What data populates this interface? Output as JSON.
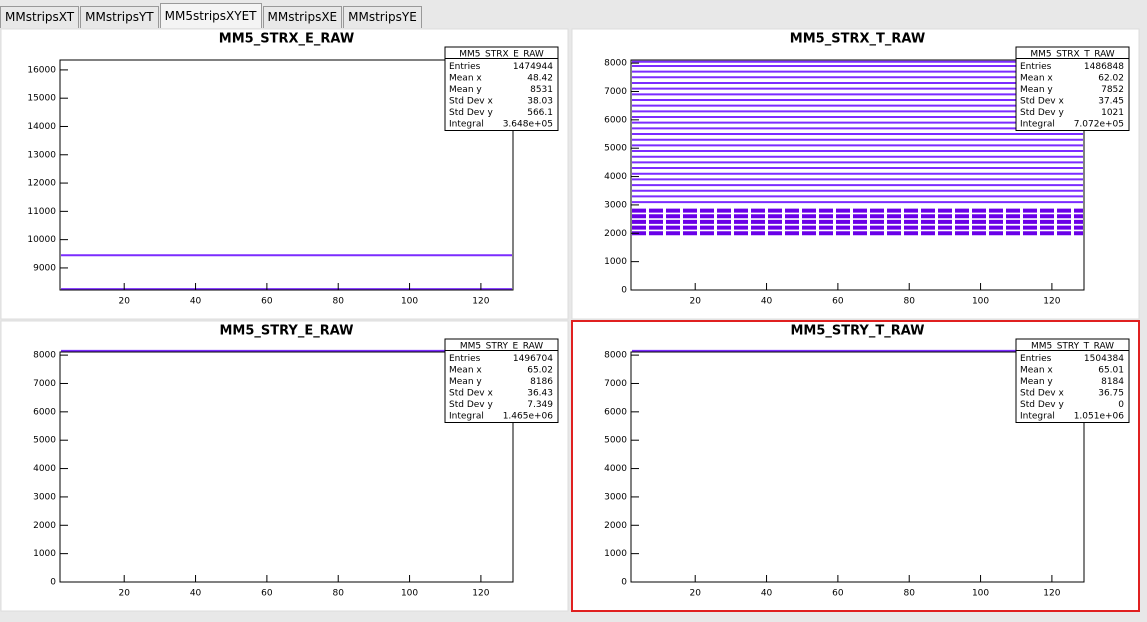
{
  "tabs": [
    "MMstripsXT",
    "MMstripsYT",
    "MM5stripsXYET",
    "MMstripsXE",
    "MMstripsYE"
  ],
  "selected_tab": 2,
  "panels": [
    {
      "title": "MM5_STRX_E_RAW",
      "stats": {
        "name": "MM5_STRX_E_RAW",
        "rows": [
          [
            "Entries",
            "1474944"
          ],
          [
            "Mean x",
            "48.42"
          ],
          [
            "Mean y",
            "8531"
          ],
          [
            "Std Dev x",
            "38.03"
          ],
          [
            "Std Dev y",
            "566.1"
          ],
          [
            "Integral",
            "3.648e+05"
          ]
        ]
      },
      "xlim": [
        2,
        129
      ],
      "xticks": [
        20,
        40,
        60,
        80,
        100,
        120
      ],
      "ylim": [
        8220,
        16350
      ],
      "yticks": [
        9000,
        10000,
        11000,
        12000,
        13000,
        14000,
        15000,
        16000
      ],
      "levels": [
        9450,
        8250
      ]
    },
    {
      "title": "MM5_STRX_T_RAW",
      "stats": {
        "name": "MM5_STRX_T_RAW",
        "rows": [
          [
            "Entries",
            "1486848"
          ],
          [
            "Mean x",
            "62.02"
          ],
          [
            "Mean y",
            "7852"
          ],
          [
            "Std Dev x",
            "37.45"
          ],
          [
            "Std Dev y",
            "1021"
          ],
          [
            "Integral",
            "7.072e+05"
          ]
        ]
      },
      "xlim": [
        2,
        129
      ],
      "xticks": [
        20,
        40,
        60,
        80,
        100,
        120
      ],
      "ylim": [
        0,
        8110
      ],
      "yticks": [
        0,
        1000,
        2000,
        3000,
        4000,
        5000,
        6000,
        7000,
        8000
      ],
      "levels": [
        8050,
        7900,
        7700,
        7500,
        7300,
        7100,
        6900,
        6700,
        6500,
        6300,
        6100,
        5900,
        5700,
        5500,
        5300,
        5100,
        4900,
        4700,
        4500,
        4300,
        4100,
        3900,
        3700,
        3500,
        3300,
        3100,
        2800,
        2600,
        2400,
        2200,
        2000
      ]
    },
    {
      "title": "MM5_STRY_E_RAW",
      "stats": {
        "name": "MM5_STRY_E_RAW",
        "rows": [
          [
            "Entries",
            "1496704"
          ],
          [
            "Mean x",
            "65.02"
          ],
          [
            "Mean y",
            "8186"
          ],
          [
            "Std Dev x",
            "36.43"
          ],
          [
            "Std Dev y",
            "7.349"
          ],
          [
            "Integral",
            "1.465e+06"
          ]
        ]
      },
      "xlim": [
        2,
        129
      ],
      "xticks": [
        20,
        40,
        60,
        80,
        100,
        120
      ],
      "ylim": [
        0,
        8110
      ],
      "yticks": [
        0,
        1000,
        2000,
        3000,
        4000,
        5000,
        6000,
        7000,
        8000
      ],
      "levels": [
        8150
      ]
    },
    {
      "title": "MM5_STRY_T_RAW",
      "stats": {
        "name": "MM5_STRY_T_RAW",
        "rows": [
          [
            "Entries",
            "1504384"
          ],
          [
            "Mean x",
            "65.01"
          ],
          [
            "Mean y",
            "8184"
          ],
          [
            "Std Dev x",
            "36.75"
          ],
          [
            "Std Dev y",
            "0"
          ],
          [
            "Integral",
            "1.051e+06"
          ]
        ]
      },
      "xlim": [
        2,
        129
      ],
      "xticks": [
        20,
        40,
        60,
        80,
        100,
        120
      ],
      "ylim": [
        0,
        8110
      ],
      "yticks": [
        0,
        1000,
        2000,
        3000,
        4000,
        5000,
        6000,
        7000,
        8000
      ],
      "levels": [
        8150
      ]
    }
  ]
}
